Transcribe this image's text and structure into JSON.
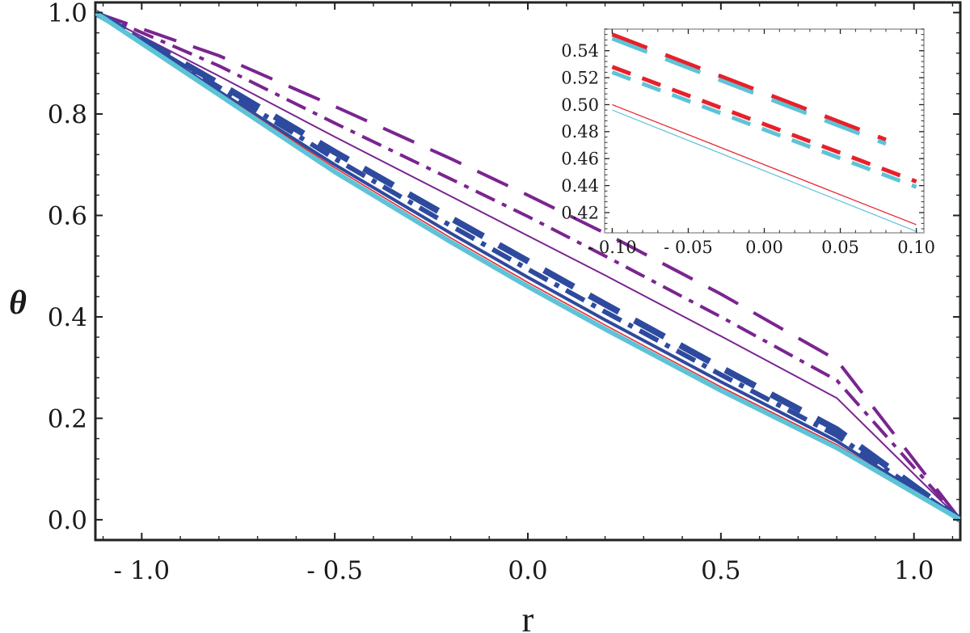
{
  "chart_data": [
    {
      "type": "line",
      "xlabel": "r",
      "ylabel": "θ",
      "xlim": [
        -1.12,
        1.12
      ],
      "ylim": [
        -0.04,
        1.02
      ],
      "xticks": [
        -1.0,
        -0.5,
        0.0,
        0.5,
        1.0
      ],
      "xtick_labels": [
        "- 1.0",
        "- 0.5",
        "0.0",
        "0.5",
        "1.0"
      ],
      "yticks": [
        0.0,
        0.2,
        0.4,
        0.6,
        0.8,
        1.0
      ],
      "ytick_labels": [
        "0.0",
        "0.2",
        "0.4",
        "0.6",
        "0.8",
        "1.0"
      ],
      "grid": false,
      "series": [
        {
          "color": "#7a2590",
          "style": "long-dash",
          "width": 4,
          "x": [
            -1.12,
            -0.8,
            -0.5,
            -0.2,
            0.0,
            0.2,
            0.5,
            0.8,
            1.12
          ],
          "y": [
            1.0,
            0.915,
            0.815,
            0.712,
            0.64,
            0.565,
            0.445,
            0.315,
            0.0
          ]
        },
        {
          "color": "#7a2590",
          "style": "dot-dash",
          "width": 4,
          "x": [
            -1.12,
            -0.8,
            -0.5,
            -0.2,
            0.0,
            0.2,
            0.5,
            0.8,
            1.12
          ],
          "y": [
            1.0,
            0.895,
            0.782,
            0.672,
            0.598,
            0.52,
            0.4,
            0.275,
            0.0
          ]
        },
        {
          "color": "#7a2590",
          "style": "solid",
          "width": 2,
          "x": [
            -1.12,
            -0.8,
            -0.5,
            -0.2,
            0.0,
            0.2,
            0.5,
            0.8,
            1.12
          ],
          "y": [
            1.0,
            0.875,
            0.755,
            0.638,
            0.56,
            0.482,
            0.362,
            0.24,
            0.0
          ]
        },
        {
          "color": "#2e4a9e",
          "style": "long-dash",
          "width": 8,
          "x": [
            -1.12,
            -0.8,
            -0.5,
            -0.2,
            0.0,
            0.2,
            0.5,
            0.8,
            1.12
          ],
          "y": [
            1.0,
            0.86,
            0.725,
            0.595,
            0.51,
            0.425,
            0.3,
            0.178,
            0.0
          ]
        },
        {
          "color": "#2e4a9e",
          "style": "dot-dash",
          "width": 6,
          "x": [
            -1.12,
            -0.8,
            -0.5,
            -0.2,
            0.0,
            0.2,
            0.5,
            0.8,
            1.12
          ],
          "y": [
            1.0,
            0.853,
            0.712,
            0.58,
            0.494,
            0.41,
            0.286,
            0.166,
            0.0
          ]
        },
        {
          "color": "#2e4a9e",
          "style": "solid",
          "width": 4,
          "x": [
            -1.12,
            -0.8,
            -0.5,
            -0.2,
            0.0,
            0.2,
            0.5,
            0.8,
            1.12
          ],
          "y": [
            1.0,
            0.845,
            0.7,
            0.565,
            0.478,
            0.394,
            0.272,
            0.155,
            0.0
          ]
        },
        {
          "color": "#e8202a",
          "style": "solid",
          "width": 1.5,
          "x": [
            -1.12,
            -0.8,
            -0.5,
            -0.2,
            0.0,
            0.2,
            0.5,
            0.8,
            1.12
          ],
          "y": [
            1.0,
            0.842,
            0.694,
            0.556,
            0.468,
            0.384,
            0.262,
            0.148,
            0.0
          ]
        },
        {
          "color": "#5ec3d6",
          "style": "solid",
          "width": 6,
          "x": [
            -1.12,
            -0.8,
            -0.5,
            -0.2,
            0.0,
            0.2,
            0.5,
            0.8,
            1.12
          ],
          "y": [
            1.0,
            0.838,
            0.686,
            0.548,
            0.46,
            0.376,
            0.255,
            0.142,
            0.0
          ]
        }
      ]
    },
    {
      "type": "line",
      "xlabel": "",
      "ylabel": "",
      "xlim": [
        -0.105,
        0.105
      ],
      "ylim": [
        0.405,
        0.556
      ],
      "xticks": [
        -0.1,
        -0.05,
        0.0,
        0.05,
        0.1
      ],
      "xtick_labels": [
        "- 0.10",
        "- 0.05",
        "0.00",
        "0.05",
        "0.10"
      ],
      "yticks": [
        0.42,
        0.44,
        0.46,
        0.48,
        0.5,
        0.52,
        0.54
      ],
      "ytick_labels": [
        "0.42",
        "0.44",
        "0.46",
        "0.48",
        "0.50",
        "0.52",
        "0.54"
      ],
      "grid": false,
      "series": [
        {
          "color": "#e8202a",
          "style": "long-dash",
          "width": 5,
          "x": [
            -0.1,
            0.08
          ],
          "y": [
            0.552,
            0.474
          ]
        },
        {
          "color": "#5ec3d6",
          "style": "long-dash",
          "width": 5,
          "x": [
            -0.1,
            0.08
          ],
          "y": [
            0.549,
            0.471
          ]
        },
        {
          "color": "#e8202a",
          "style": "dash",
          "width": 5,
          "x": [
            -0.1,
            0.1
          ],
          "y": [
            0.528,
            0.443
          ]
        },
        {
          "color": "#5ec3d6",
          "style": "dash",
          "width": 5,
          "x": [
            -0.1,
            0.1
          ],
          "y": [
            0.524,
            0.439
          ]
        },
        {
          "color": "#e8202a",
          "style": "solid",
          "width": 1.2,
          "x": [
            -0.1,
            0.1
          ],
          "y": [
            0.5,
            0.411
          ]
        },
        {
          "color": "#5ec3d6",
          "style": "solid",
          "width": 1.2,
          "x": [
            -0.1,
            0.1
          ],
          "y": [
            0.496,
            0.406
          ]
        }
      ]
    }
  ]
}
